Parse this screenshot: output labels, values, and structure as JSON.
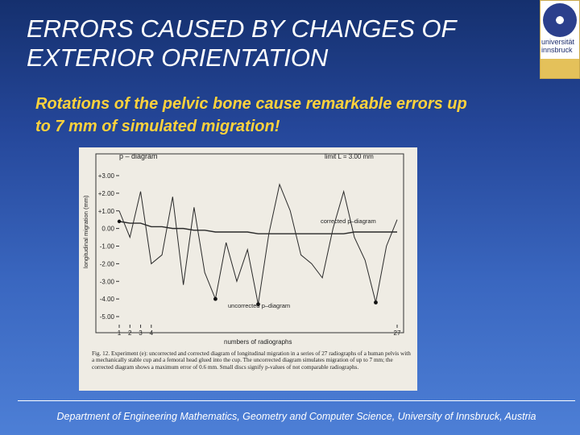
{
  "slide": {
    "title": "ERRORS CAUSED BY CHANGES OF EXTERIOR ORIENTATION",
    "subtitle": "Rotations of the pelvic bone cause remarkable errors up to 7 mm of simulated migration!",
    "footer": "Department of Engineering Mathematics, Geometry and Computer Science, University of Innsbruck, Austria"
  },
  "logo": {
    "line1": "universität",
    "line2": "innsbruck"
  },
  "colors": {
    "title": "#ffffff",
    "subtitle": "#ffd23c",
    "background": "#2a4fa6"
  },
  "chart_data": {
    "type": "line",
    "title": "p – diagram",
    "limit_label": "limit L = 3.00 mm",
    "ylabel": "longitudinal migration (mm)",
    "xlabel": "numbers of radiographs",
    "ylim": [
      -5.0,
      3.0
    ],
    "xlim": [
      1,
      27
    ],
    "y_ticks": [
      "+3.00",
      "+2.00",
      "+1.00",
      "0.00",
      "-1.00",
      "-2.00",
      "-3.00",
      "-4.00",
      "-5.00"
    ],
    "x_tick_labels": [
      "1",
      "2",
      "3",
      "4",
      "27"
    ],
    "series": [
      {
        "name": "uncorrected p–diagram",
        "x": [
          1,
          2,
          3,
          4,
          5,
          6,
          7,
          8,
          9,
          10,
          11,
          12,
          13,
          14,
          15,
          16,
          17,
          18,
          19,
          20,
          21,
          22,
          23,
          24,
          25,
          26,
          27
        ],
        "y": [
          1.0,
          -0.5,
          2.1,
          -2.0,
          -1.5,
          1.8,
          -3.2,
          1.2,
          -2.5,
          -4.0,
          -0.8,
          -3.0,
          -1.2,
          -4.3,
          -0.3,
          2.5,
          1.0,
          -1.5,
          -2.0,
          -2.8,
          0.0,
          2.1,
          -0.5,
          -1.8,
          -4.2,
          -1.0,
          0.5
        ]
      },
      {
        "name": "corrected p–diagram",
        "x": [
          1,
          2,
          3,
          4,
          5,
          6,
          7,
          8,
          9,
          10,
          11,
          12,
          13,
          14,
          15,
          16,
          17,
          18,
          19,
          20,
          21,
          22,
          23,
          24,
          25,
          26,
          27
        ],
        "y": [
          0.4,
          0.3,
          0.3,
          0.1,
          0.1,
          0.0,
          0.0,
          -0.1,
          -0.1,
          -0.2,
          -0.2,
          -0.2,
          -0.2,
          -0.3,
          -0.3,
          -0.3,
          -0.3,
          -0.3,
          -0.3,
          -0.3,
          -0.3,
          -0.3,
          -0.2,
          -0.2,
          -0.2,
          -0.2,
          -0.2
        ]
      }
    ],
    "uncorrected_label": "uncorrected p–diagram",
    "corrected_label": "corrected p–diagram",
    "caption": "Fig. 12. Experiment (e): uncorrected and corrected diagram of longitudinal migration in a series of 27 radiographs of a human pelvis with a mechanically stable cup and a femoral head glued into the cup. The uncorrected diagram simulates migration of up to 7 mm; the corrected diagram shows a maximum error of 0.6 mm. Small discs signify p-values of not comparable radiographs."
  }
}
